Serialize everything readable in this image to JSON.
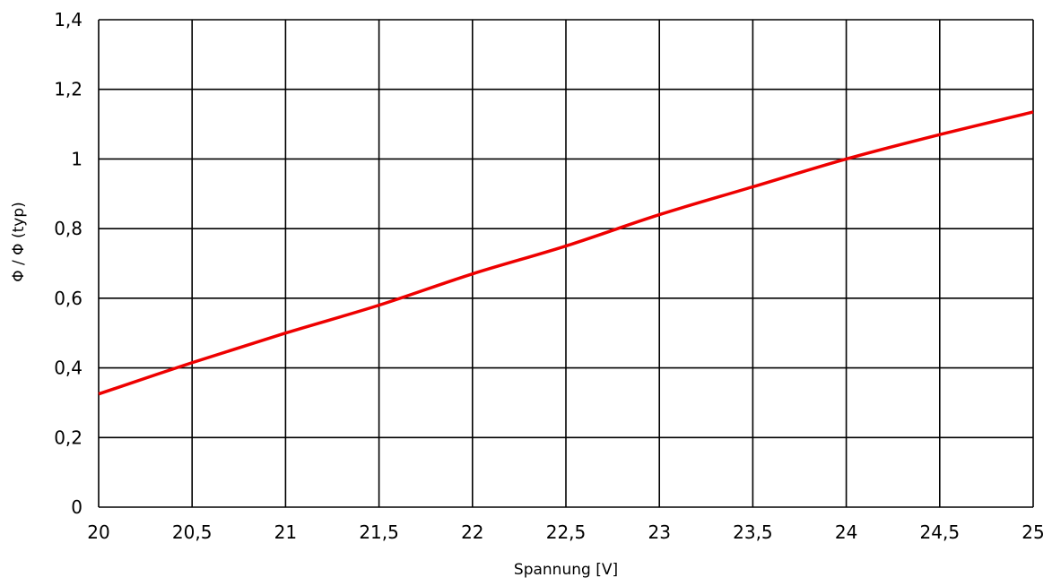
{
  "chart_data": {
    "type": "line",
    "title": "",
    "xlabel": "Spannung [V]",
    "ylabel": "Φ / Φ (typ)",
    "xlim": [
      20,
      25
    ],
    "ylim": [
      0,
      1.4
    ],
    "grid": true,
    "legend": "none",
    "x_tick_labels": [
      "20",
      "20,5",
      "21",
      "21,5",
      "22",
      "22,5",
      "23",
      "23,5",
      "24",
      "24,5",
      "25"
    ],
    "y_tick_labels": [
      "0",
      "0,2",
      "0,4",
      "0,6",
      "0,8",
      "1",
      "1,2",
      "1,4"
    ],
    "series": [
      {
        "color": "#ee0000",
        "x": [
          20,
          20.5,
          21,
          21.5,
          22,
          22.5,
          23,
          23.5,
          24,
          24.5,
          25
        ],
        "y": [
          0.325,
          0.415,
          0.5,
          0.58,
          0.67,
          0.75,
          0.84,
          0.92,
          1.0,
          1.07,
          1.135
        ]
      }
    ]
  },
  "colors": {
    "grid": "#000000",
    "background": "#ffffff"
  }
}
